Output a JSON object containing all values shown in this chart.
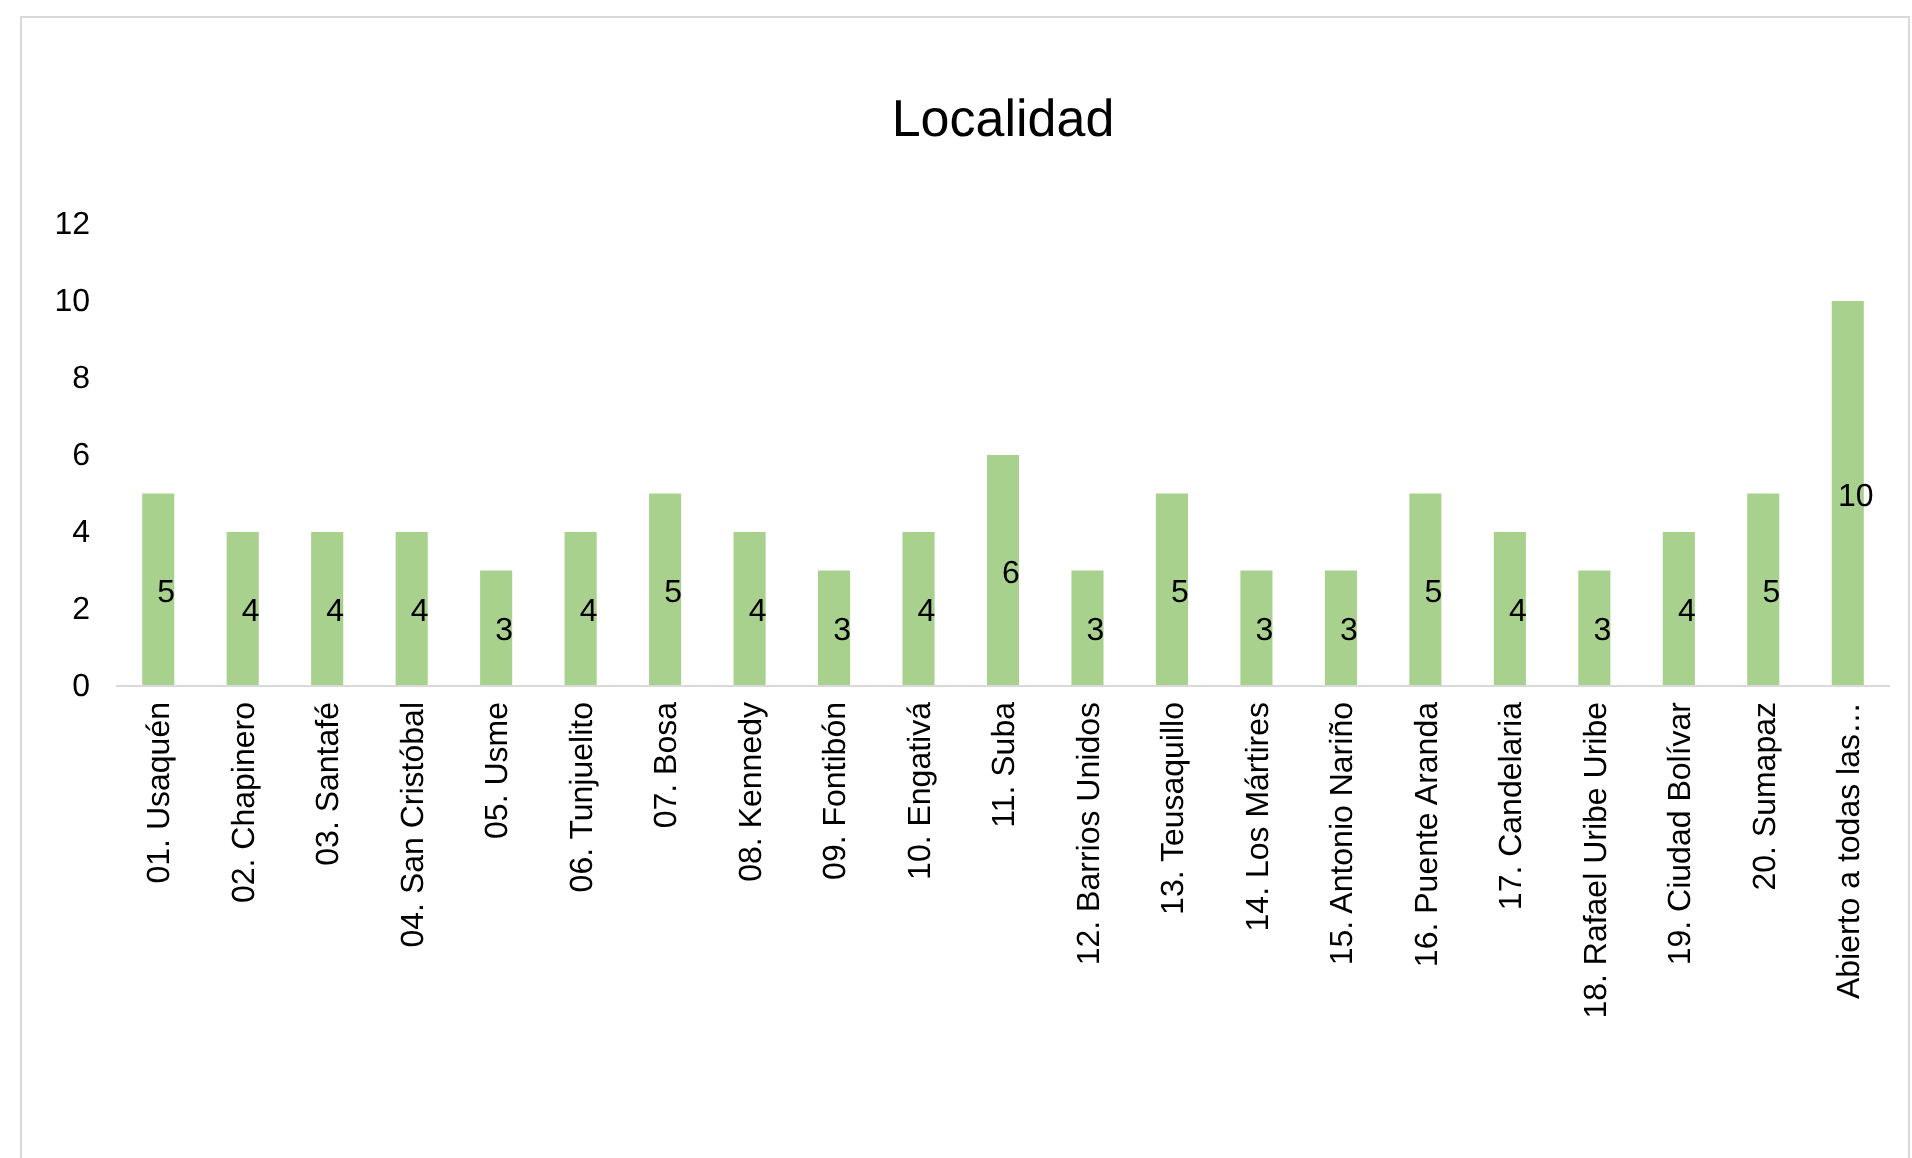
{
  "chart_data": {
    "type": "bar",
    "title": "Localidad",
    "categories": [
      "01. Usaquén",
      "02. Chapinero",
      "03. Santafé",
      "04. San Cristóbal",
      "05. Usme",
      "06. Tunjuelito",
      "07. Bosa",
      "08. Kennedy",
      "09. Fontibón",
      "10. Engativá",
      "11. Suba",
      "12. Barrios Unidos",
      "13. Teusaquillo",
      "14. Los Mártires",
      "15. Antonio Nariño",
      "16. Puente Aranda",
      "17. Candelaria",
      "18. Rafael Uribe Uribe",
      "19. Ciudad Bolívar",
      "20. Sumapaz",
      "Abierto a todas las…"
    ],
    "values": [
      5,
      4,
      4,
      4,
      3,
      4,
      5,
      4,
      3,
      4,
      6,
      3,
      5,
      3,
      3,
      5,
      4,
      3,
      4,
      5,
      10
    ],
    "color": "#a9d18e",
    "ylim": [
      0,
      12
    ],
    "yticks": [
      0,
      2,
      4,
      6,
      8,
      10,
      12
    ],
    "grid": false,
    "data_labels": true
  }
}
